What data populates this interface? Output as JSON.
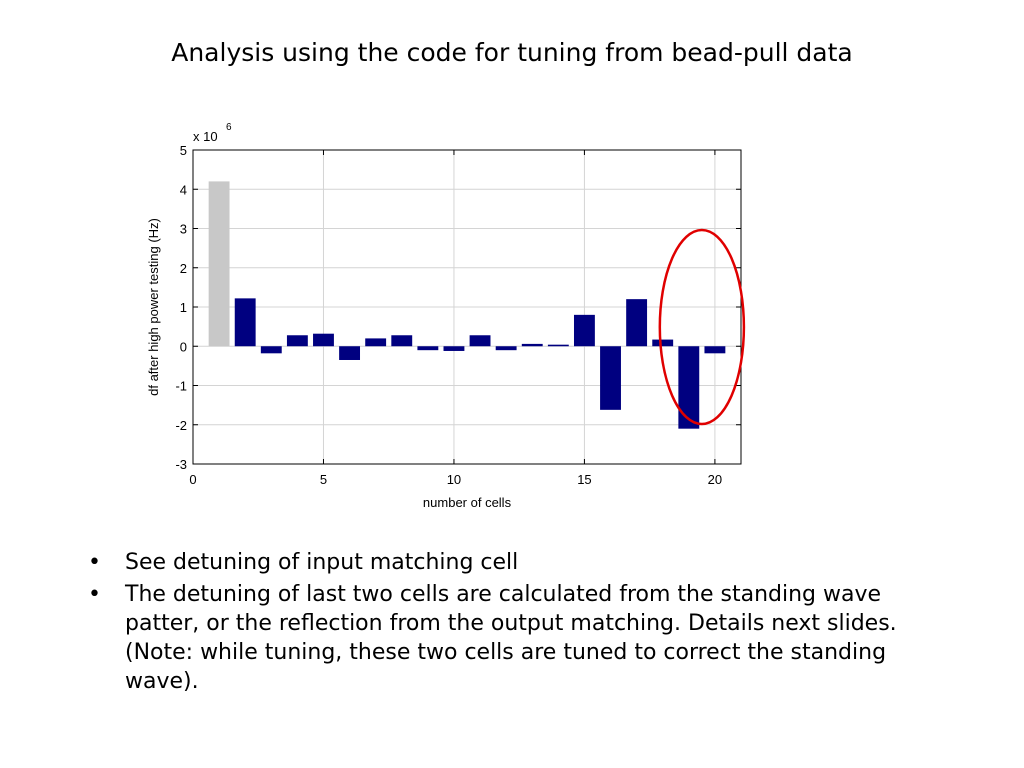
{
  "slide": {
    "title": "Analysis using the code for tuning from bead-pull data",
    "bullets": [
      "See detuning of input matching cell",
      "The detuning of last two cells are calculated from the standing wave patter, or the reflection from the output matching. Details next slides. (Note: while tuning, these two cells are tuned to correct the standing wave)."
    ],
    "bullet_symbol": "•"
  },
  "chart_data": {
    "type": "bar",
    "title": "",
    "xlabel": "number of cells",
    "ylabel": "df after high power testing (Hz)",
    "y_multiplier_base": "x 10",
    "y_multiplier_exponent": "6",
    "xlim": [
      0,
      21
    ],
    "ylim": [
      -3,
      5
    ],
    "x_ticks": [
      0,
      5,
      10,
      15,
      20
    ],
    "y_ticks": [
      5,
      4,
      3,
      2,
      1,
      0,
      -1,
      -2,
      -3
    ],
    "grid": true,
    "x": [
      1,
      2,
      3,
      4,
      5,
      6,
      7,
      8,
      9,
      10,
      11,
      12,
      13,
      14,
      15,
      16,
      17,
      18,
      19,
      20
    ],
    "values": [
      4.2,
      1.22,
      -0.18,
      0.28,
      0.32,
      -0.35,
      0.2,
      0.28,
      -0.1,
      -0.12,
      0.28,
      -0.1,
      0.06,
      0.04,
      0.8,
      -1.62,
      1.2,
      0.17,
      -2.1,
      -0.18
    ],
    "bar_colors": [
      "#c8c8c8",
      "#000080",
      "#000080",
      "#000080",
      "#000080",
      "#000080",
      "#000080",
      "#000080",
      "#000080",
      "#000080",
      "#000080",
      "#000080",
      "#000080",
      "#000080",
      "#000080",
      "#000080",
      "#000080",
      "#000080",
      "#000080",
      "#000080"
    ],
    "highlight": {
      "shape": "ellipse",
      "color": "#e00000",
      "cells": [
        19,
        20
      ]
    }
  }
}
